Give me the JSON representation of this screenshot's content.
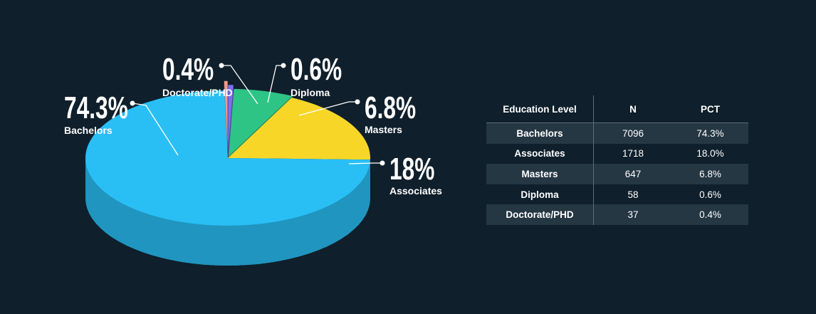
{
  "chart_data": [
    {
      "type": "pie",
      "title": "",
      "slices": [
        {
          "label": "Bachelors",
          "value": 74.3,
          "display": "74.3%",
          "color": "#29bff5"
        },
        {
          "label": "Associates",
          "value": 18.0,
          "display": "18%",
          "color": "#f7d628"
        },
        {
          "label": "Masters",
          "value": 6.8,
          "display": "6.8%",
          "color": "#2ec486"
        },
        {
          "label": "Diploma",
          "value": 0.6,
          "display": "0.6%",
          "color": "#7c6ff2"
        },
        {
          "label": "Doctorate/PHD",
          "value": 0.4,
          "display": "0.4%",
          "color": "#f29a8c"
        }
      ]
    },
    {
      "type": "table",
      "columns": [
        "Education Level",
        "N",
        "PCT"
      ],
      "rows": [
        [
          "Bachelors",
          "7096",
          "74.3%"
        ],
        [
          "Associates",
          "1718",
          "18.0%"
        ],
        [
          "Masters",
          "647",
          "6.8%"
        ],
        [
          "Diploma",
          "58",
          "0.6%"
        ],
        [
          "Doctorate/PHD",
          "37",
          "0.4%"
        ]
      ]
    }
  ],
  "colors": {
    "background": "#0f1f2b",
    "table_stripe": "#253743",
    "table_rule": "#5d6c78"
  }
}
